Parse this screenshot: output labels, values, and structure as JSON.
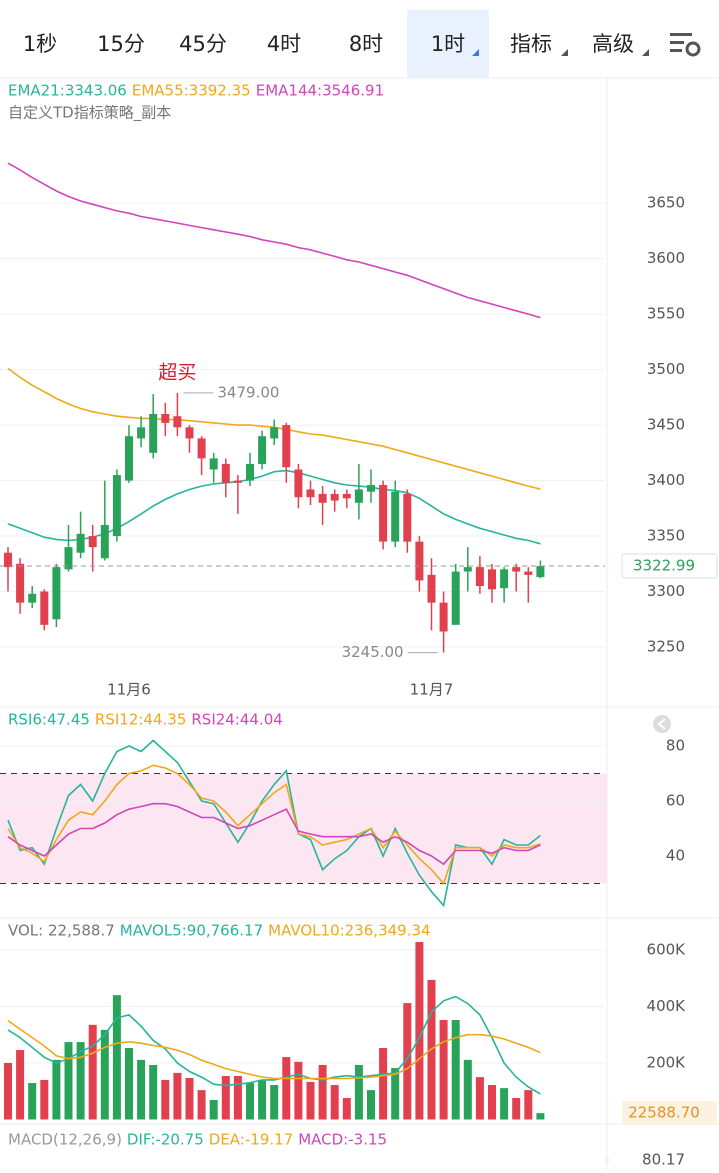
{
  "toolbar": {
    "tabs": [
      "1秒",
      "15分",
      "45分",
      "4时",
      "8时",
      "1时",
      "指标",
      "高级"
    ],
    "active": 5
  },
  "chart_data": [
    {
      "type": "candlestick",
      "subtitle": "自定义TD指标策略_副本",
      "annotation": "超买",
      "categories": [
        null,
        null,
        null,
        null,
        null,
        null,
        null,
        null,
        null,
        null,
        "11月6",
        null,
        null,
        null,
        null,
        null,
        null,
        null,
        null,
        null,
        null,
        null,
        null,
        null,
        null,
        null,
        null,
        null,
        null,
        null,
        null,
        null,
        null,
        null,
        null,
        "11月7",
        null,
        null,
        null,
        null,
        null,
        null,
        null,
        null,
        null
      ],
      "open": [
        3335,
        3325,
        3290,
        3300,
        3275,
        3320,
        3335,
        3350,
        3330,
        3350,
        3400,
        3438,
        3425,
        3460,
        3458,
        3448,
        3438,
        3410,
        3415,
        3400,
        3400,
        3415,
        3438,
        3450,
        3410,
        3392,
        3388,
        3388,
        3388,
        3380,
        3390,
        3396,
        3345,
        3388,
        3345,
        3315,
        3290,
        3270,
        3318,
        3322,
        3320,
        3303,
        3322,
        3318,
        3313
      ],
      "close": [
        3322,
        3290,
        3298,
        3270,
        3322,
        3340,
        3352,
        3340,
        3360,
        3405,
        3440,
        3448,
        3460,
        3452,
        3448,
        3438,
        3420,
        3420,
        3398,
        3398,
        3415,
        3440,
        3448,
        3412,
        3385,
        3385,
        3380,
        3382,
        3384,
        3392,
        3396,
        3345,
        3390,
        3345,
        3310,
        3290,
        3264,
        3318,
        3322,
        3305,
        3302,
        3320,
        3318,
        3315,
        3322.99
      ],
      "high": [
        3340,
        3330,
        3305,
        3302,
        3325,
        3360,
        3372,
        3360,
        3400,
        3410,
        3450,
        3458,
        3478,
        3470,
        3479,
        3450,
        3440,
        3425,
        3420,
        3405,
        3425,
        3445,
        3455,
        3452,
        3415,
        3400,
        3395,
        3392,
        3392,
        3415,
        3410,
        3400,
        3400,
        3392,
        3350,
        3330,
        3300,
        3325,
        3340,
        3332,
        3325,
        3322,
        3325,
        3322,
        3328
      ],
      "low": [
        3300,
        3280,
        3285,
        3265,
        3268,
        3318,
        3330,
        3318,
        3328,
        3345,
        3398,
        3430,
        3420,
        3440,
        3440,
        3425,
        3405,
        3398,
        3385,
        3370,
        3395,
        3410,
        3432,
        3398,
        3375,
        3378,
        3360,
        3372,
        3375,
        3365,
        3380,
        3338,
        3340,
        3335,
        3300,
        3265,
        3245,
        3270,
        3300,
        3298,
        3290,
        3290,
        3300,
        3290,
        3312
      ],
      "up_color": "#2aa35a",
      "down_color": "#e2404f",
      "series": [
        {
          "name": "EMA21:3343.06",
          "color": "#26b59b",
          "values": [
            3361,
            3357,
            3353,
            3349,
            3347,
            3346,
            3347,
            3349,
            3352,
            3357,
            3363,
            3370,
            3377,
            3383,
            3388,
            3392,
            3395,
            3397,
            3398,
            3399,
            3401,
            3404,
            3408,
            3409,
            3407,
            3404,
            3401,
            3398,
            3396,
            3395,
            3394,
            3392,
            3391,
            3389,
            3384,
            3377,
            3370,
            3365,
            3361,
            3357,
            3354,
            3351,
            3348,
            3346,
            3343.06
          ]
        },
        {
          "name": "EMA55:3392.35",
          "color": "#f0a81a",
          "values": [
            3501,
            3493,
            3486,
            3480,
            3474,
            3469,
            3465,
            3462,
            3460,
            3458,
            3457,
            3456,
            3456,
            3455,
            3455,
            3454,
            3453,
            3452,
            3451,
            3450,
            3450,
            3449,
            3448,
            3446,
            3444,
            3442,
            3441,
            3439,
            3437,
            3435,
            3433,
            3431,
            3428,
            3425,
            3422,
            3419,
            3416,
            3413,
            3410,
            3407,
            3404,
            3401,
            3398,
            3395,
            3392.35
          ]
        },
        {
          "name": "EMA144:3546.91",
          "color": "#d146b8",
          "values": [
            3686,
            3680,
            3673,
            3667,
            3661,
            3656,
            3652,
            3649,
            3646,
            3643,
            3641,
            3638,
            3636,
            3634,
            3632,
            3630,
            3628,
            3626,
            3624,
            3622,
            3620,
            3617,
            3615,
            3613,
            3610,
            3608,
            3605,
            3602,
            3599,
            3597,
            3594,
            3591,
            3588,
            3585,
            3581,
            3577,
            3573,
            3569,
            3565,
            3562,
            3559,
            3556,
            3553,
            3550,
            3546.91
          ]
        }
      ],
      "max_marker": {
        "value": 3479,
        "label": "3479.00"
      },
      "min_marker": {
        "value": 3245,
        "label": "3245.00"
      },
      "last_price": 3322.99,
      "ylim": [
        3232,
        3761
      ],
      "yticks": [
        3250,
        3300,
        3350,
        3400,
        3450,
        3500,
        3550,
        3600,
        3650
      ],
      "grid": true
    },
    {
      "type": "line",
      "series": [
        {
          "name": "RSI6:47.45",
          "color": "#26b59b",
          "values": [
            53,
            42,
            43,
            37,
            50,
            62,
            66,
            60,
            70,
            78,
            80,
            78,
            82,
            78,
            74,
            67,
            60,
            59,
            52,
            45,
            52,
            60,
            66,
            71,
            48,
            46,
            35,
            39,
            42,
            47,
            50,
            40,
            50,
            41,
            33,
            27,
            22,
            44,
            43,
            43,
            37,
            46,
            44,
            44,
            47.45
          ]
        },
        {
          "name": "RSI12:44.35",
          "color": "#f0a81a",
          "values": [
            50,
            43,
            41,
            38,
            46,
            53,
            56,
            55,
            60,
            66,
            70,
            71,
            73,
            72,
            70,
            66,
            61,
            60,
            56,
            51,
            55,
            59,
            63,
            66,
            48,
            47,
            44,
            45,
            46,
            48,
            50,
            43,
            49,
            44,
            39,
            35,
            30,
            43,
            43,
            43,
            40,
            44,
            43,
            43,
            44.35
          ]
        },
        {
          "name": "RSI24:44.04",
          "color": "#d146b8",
          "values": [
            47,
            44,
            42,
            40,
            44,
            48,
            50,
            50,
            52,
            55,
            57,
            58,
            59,
            59,
            58,
            56,
            54,
            54,
            52,
            50,
            51,
            53,
            55,
            57,
            49,
            48,
            47,
            47,
            47,
            47,
            48,
            45,
            47,
            45,
            42,
            40,
            37,
            42,
            42,
            42,
            41,
            43,
            42,
            42,
            44.04
          ]
        }
      ],
      "overbought": 70,
      "oversold": 30,
      "band_color": "#fce6f2",
      "ylim": [
        17.8,
        93.1
      ],
      "yticks": [
        40,
        60,
        80
      ],
      "grid": true
    },
    {
      "type": "bar",
      "title": "VOL: 22,588.7",
      "values": [
        200000,
        246000,
        129000,
        140000,
        211000,
        274000,
        274000,
        335000,
        317000,
        440000,
        253000,
        211000,
        193000,
        140000,
        165000,
        147000,
        104000,
        69000,
        154000,
        154000,
        129000,
        140000,
        122000,
        221000,
        204000,
        133000,
        193000,
        122000,
        76000,
        193000,
        104000,
        253000,
        182000,
        412000,
        628000,
        494000,
        352000,
        352000,
        211000,
        150000,
        122000,
        111000,
        76000,
        104000,
        22588.7
      ],
      "series": [
        {
          "name": "MAVOL5:90,766.17",
          "color": "#26b59b",
          "values": [
            317000,
            290000,
            255000,
            220000,
            200000,
            215000,
            240000,
            260000,
            300000,
            360000,
            370000,
            330000,
            280000,
            250000,
            200000,
            170000,
            150000,
            125000,
            120000,
            125000,
            130000,
            140000,
            140000,
            150000,
            160000,
            145000,
            140000,
            150000,
            155000,
            150000,
            155000,
            160000,
            165000,
            215000,
            290000,
            380000,
            420000,
            435000,
            410000,
            370000,
            290000,
            200000,
            150000,
            115000,
            90766.17
          ]
        },
        {
          "name": "MAVOL10:236,349.34",
          "color": "#f0a81a",
          "values": [
            350000,
            320000,
            290000,
            260000,
            225000,
            215000,
            220000,
            235000,
            255000,
            270000,
            275000,
            270000,
            262000,
            255000,
            245000,
            230000,
            210000,
            195000,
            180000,
            170000,
            160000,
            150000,
            145000,
            145000,
            145000,
            145000,
            145000,
            145000,
            145000,
            147000,
            150000,
            155000,
            160000,
            180000,
            215000,
            250000,
            275000,
            290000,
            300000,
            300000,
            295000,
            285000,
            270000,
            255000,
            236349.34
          ]
        }
      ],
      "last_value": {
        "value": 22588.7,
        "label": "22588.70"
      },
      "ylim": [
        0,
        706000
      ],
      "yticks": [
        {
          "value": 200000,
          "label": "200K"
        },
        {
          "value": 400000,
          "label": "400K"
        },
        {
          "value": 600000,
          "label": "600K"
        }
      ],
      "grid": true
    },
    {
      "type": "macd",
      "title": "MACD(12,26,9)",
      "series": [
        {
          "name": "DIF:-20.75",
          "color": "#26b59b"
        },
        {
          "name": "DEA:-19.17",
          "color": "#f0a81a"
        },
        {
          "name": "MACD:-3.15",
          "color": "#d146b8"
        }
      ],
      "yticks": [
        80.17
      ]
    }
  ]
}
